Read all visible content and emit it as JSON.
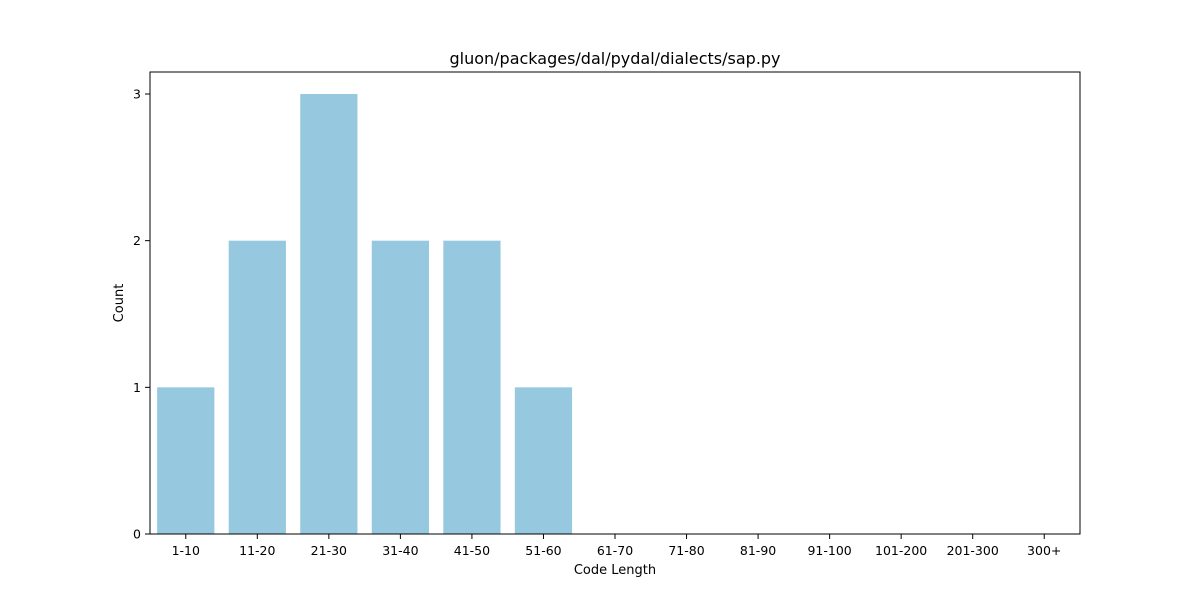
{
  "chart_data": {
    "type": "bar",
    "title": "gluon/packages/dal/pydal/dialects/sap.py",
    "xlabel": "Code Length",
    "ylabel": "Count",
    "categories": [
      "1-10",
      "11-20",
      "21-30",
      "31-40",
      "41-50",
      "51-60",
      "61-70",
      "71-80",
      "81-90",
      "91-100",
      "101-200",
      "201-300",
      "300+"
    ],
    "values": [
      1,
      2,
      3,
      2,
      2,
      1,
      0,
      0,
      0,
      0,
      0,
      0,
      0
    ],
    "ylim": [
      0,
      3.15
    ],
    "yticks": [
      0,
      1,
      2,
      3
    ],
    "bar_color": "#96c9df",
    "grid": false,
    "legend": "none"
  }
}
